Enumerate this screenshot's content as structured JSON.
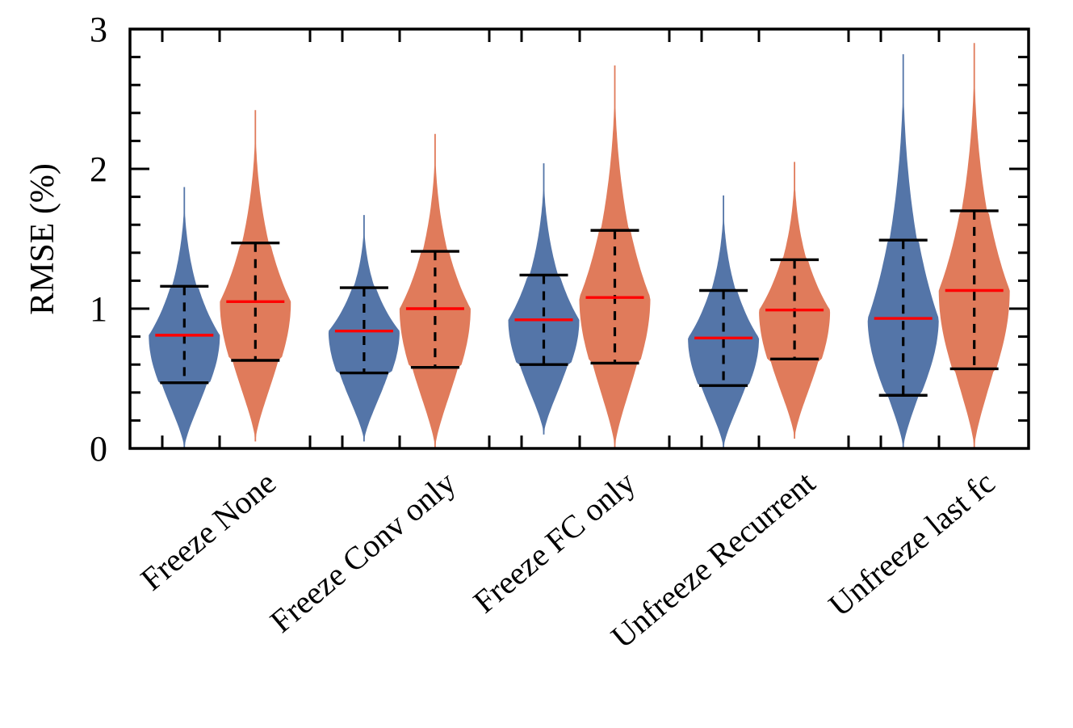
{
  "chart_data": {
    "type": "violin",
    "title": "",
    "xlabel": "",
    "ylabel": "RMSE (%)",
    "ylim": [
      0,
      3
    ],
    "yticks": [
      0,
      1,
      2,
      3
    ],
    "grid": false,
    "categories": [
      "Freeze None",
      "Freeze Conv only",
      "Freeze FC only",
      "Unfreeze Recurrent",
      "Unfreeze last fc"
    ],
    "series": [
      {
        "color": "#5475A8",
        "min": [
          0.0,
          0.05,
          0.1,
          0.0,
          0.0
        ],
        "max": [
          1.87,
          1.67,
          2.04,
          1.81,
          2.82
        ],
        "whisker_low": [
          0.47,
          0.54,
          0.6,
          0.45,
          0.38
        ],
        "whisker_high": [
          1.16,
          1.15,
          1.24,
          1.13,
          1.49
        ],
        "median": [
          0.81,
          0.84,
          0.92,
          0.79,
          0.93
        ]
      },
      {
        "color": "#E07B5B",
        "min": [
          0.05,
          0.0,
          0.0,
          0.07,
          0.0
        ],
        "max": [
          2.42,
          2.25,
          2.74,
          2.05,
          2.9
        ],
        "whisker_low": [
          0.63,
          0.58,
          0.61,
          0.64,
          0.57
        ],
        "whisker_high": [
          1.47,
          1.41,
          1.56,
          1.35,
          1.7
        ],
        "median": [
          1.05,
          1.0,
          1.08,
          0.99,
          1.13
        ]
      }
    ],
    "median_color": "#FF0000",
    "whisker_color": "#000000"
  }
}
